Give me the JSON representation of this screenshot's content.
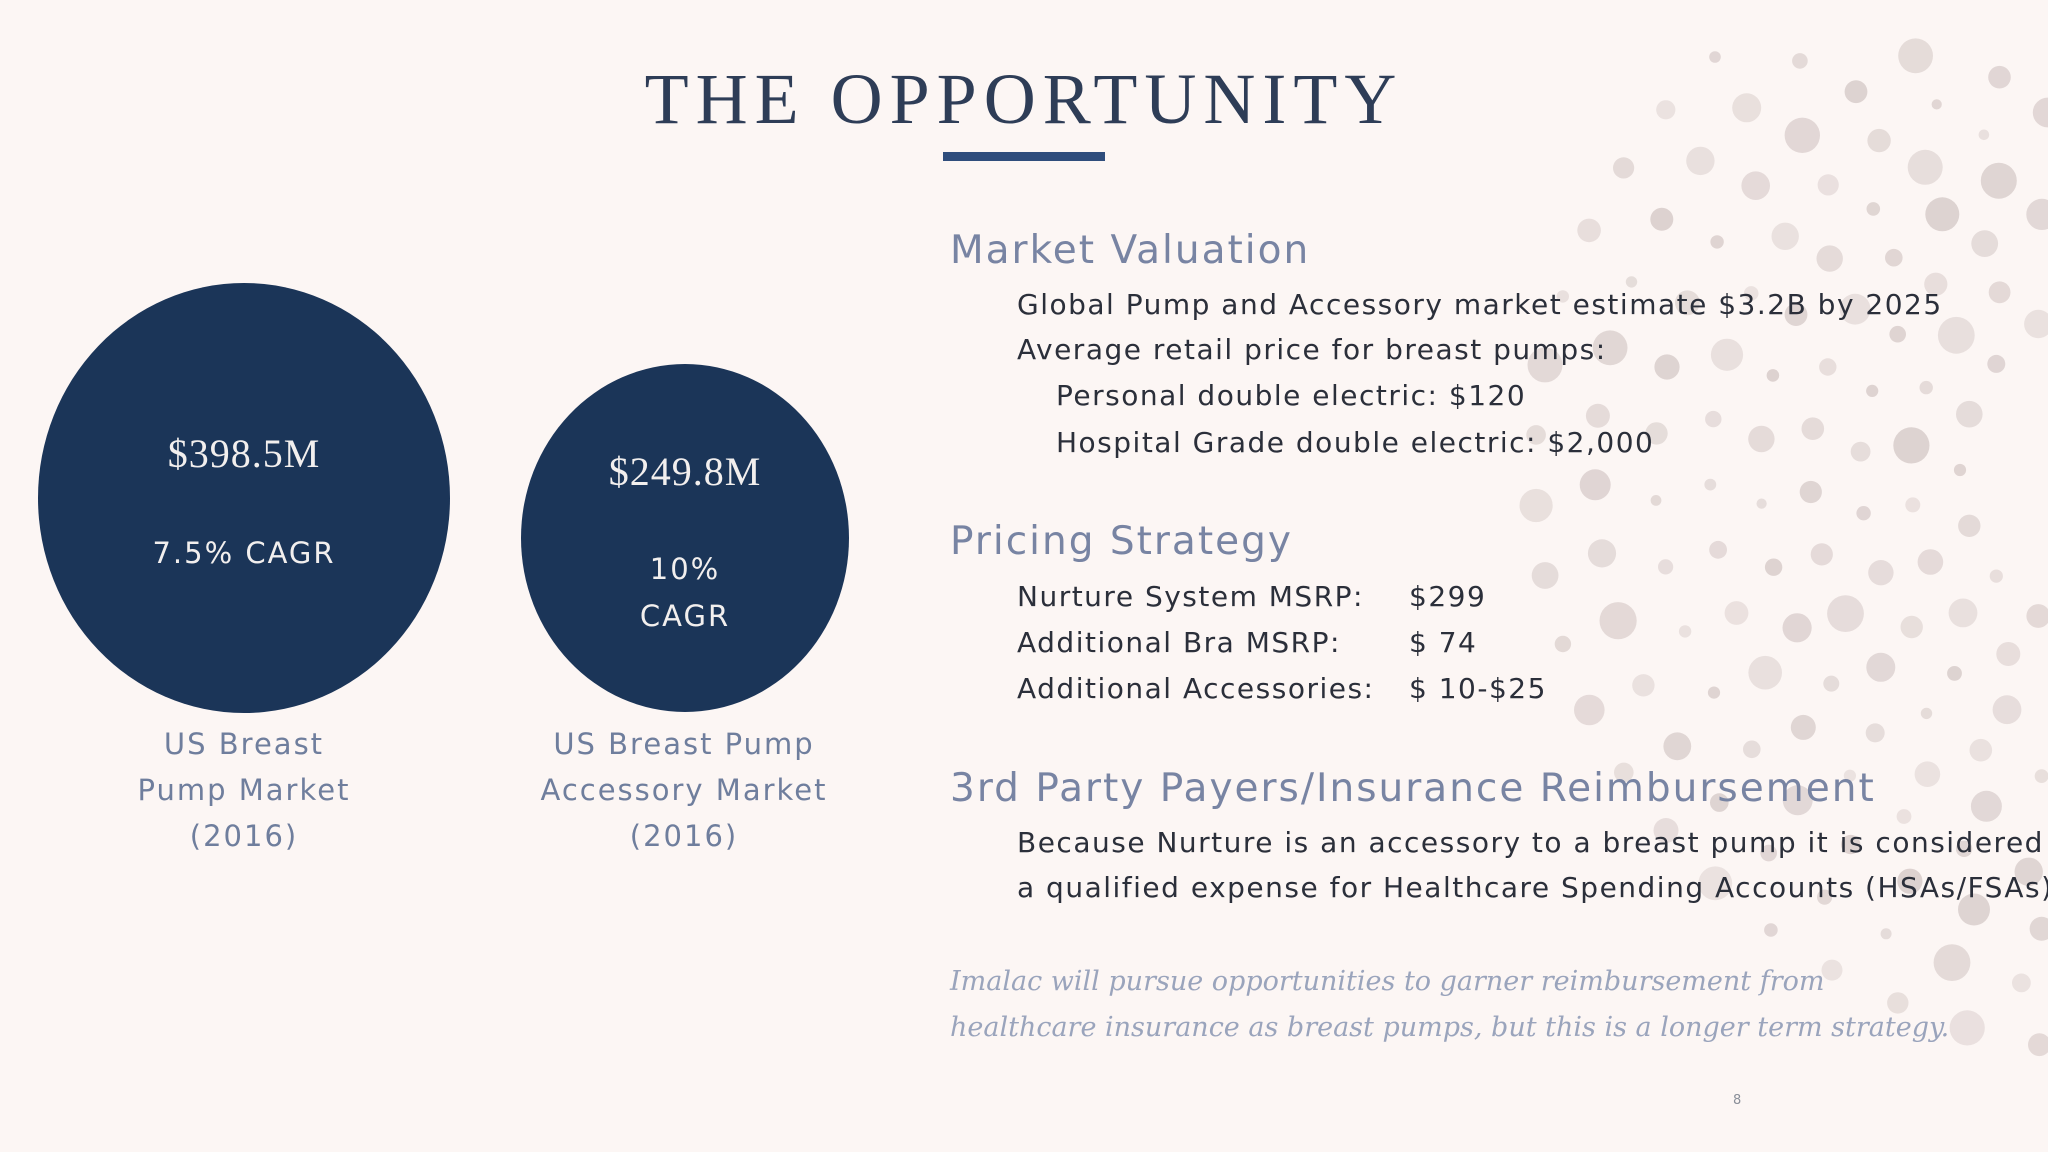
{
  "title": "THE OPPORTUNITY",
  "colors": {
    "navy": "#1b3558",
    "accent": "#2f4d7c",
    "heading": "#7884a3",
    "dots": "#ddd2d0",
    "background": "#fcf6f4"
  },
  "bubbles": [
    {
      "value": "$398.5M",
      "cagr": [
        "7.5% CAGR"
      ],
      "caption": [
        "US Breast",
        "Pump Market",
        "(2016)"
      ]
    },
    {
      "value": "$249.8M",
      "cagr": [
        "10%",
        "CAGR"
      ],
      "caption": [
        "US Breast Pump",
        "Accessory Market",
        "(2016)"
      ]
    }
  ],
  "market_valuation": {
    "heading": "Market Valuation",
    "lines": [
      "Global Pump and Accessory market estimate $3.2B by 2025",
      "Average retail price for breast pumps:",
      "Personal double electric: $120",
      "Hospital Grade double electric: $2,000"
    ]
  },
  "pricing_strategy": {
    "heading": "Pricing Strategy",
    "rows": [
      {
        "label": "Nurture System MSRP:",
        "price": "$299"
      },
      {
        "label": "Additional Bra MSRP:",
        "price": "$ 74"
      },
      {
        "label": "Additional Accessories:",
        "price": "$ 10-$25"
      }
    ]
  },
  "reimbursement": {
    "heading": "3rd Party Payers/Insurance Reimbursement",
    "lines": [
      "Because Nurture is an accessory to a breast pump it is considered",
      "a qualified expense for Healthcare Spending Accounts (HSAs/FSAs)"
    ]
  },
  "note": [
    "Imalac will pursue opportunities to garner reimbursement from",
    "healthcare insurance as breast pumps, but this is a longer term strategy."
  ],
  "page_number": "8"
}
